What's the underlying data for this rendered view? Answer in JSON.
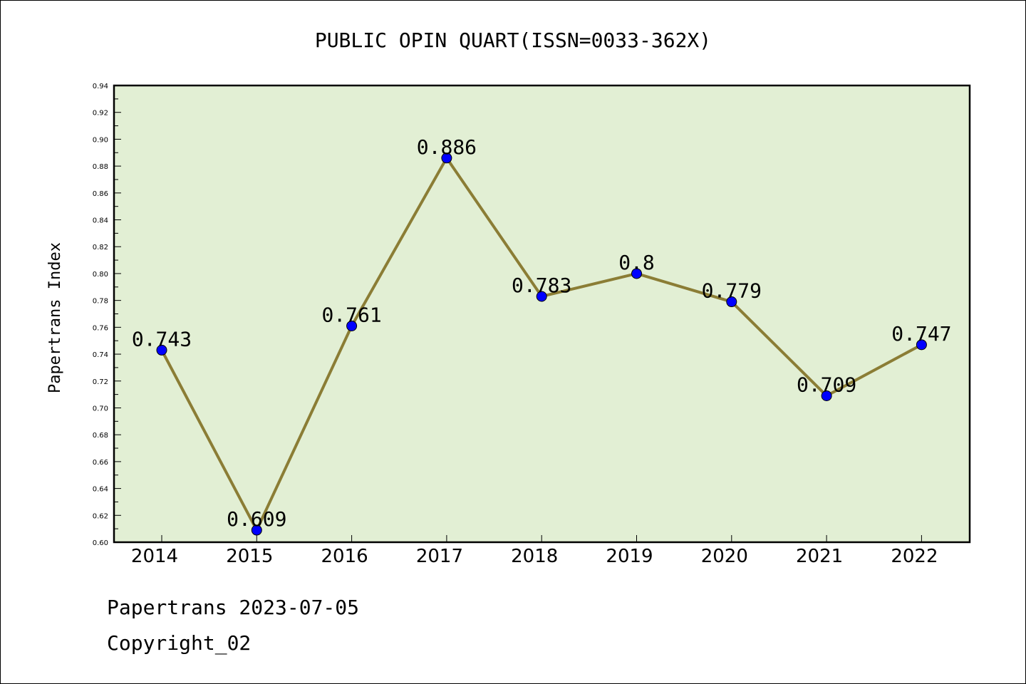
{
  "chart_data": {
    "type": "line",
    "title": "PUBLIC OPIN QUART(ISSN=0033-362X)",
    "xlabel": "",
    "ylabel": "Papertrans Index",
    "categories": [
      "2014",
      "2015",
      "2016",
      "2017",
      "2018",
      "2019",
      "2020",
      "2021",
      "2022"
    ],
    "values": [
      0.743,
      0.609,
      0.761,
      0.886,
      0.783,
      0.8,
      0.779,
      0.709,
      0.747
    ],
    "data_labels": [
      "0.743",
      "0.609",
      "0.761",
      "0.886",
      "0.783",
      "0.8",
      "0.779",
      "0.709",
      "0.747"
    ],
    "ylim": [
      0.6,
      0.94
    ],
    "yticks": [
      "0.60",
      "0.62",
      "0.64",
      "0.66",
      "0.68",
      "0.70",
      "0.72",
      "0.74",
      "0.76",
      "0.78",
      "0.80",
      "0.82",
      "0.84",
      "0.86",
      "0.88",
      "0.90",
      "0.92",
      "0.94"
    ],
    "grid": false,
    "colors": {
      "plot_background": "#e2efd4",
      "line": "#8b7d35",
      "marker": "#0000ff"
    }
  },
  "footer": {
    "line1": "Papertrans 2023-07-05",
    "line2": "Copyright_02"
  }
}
